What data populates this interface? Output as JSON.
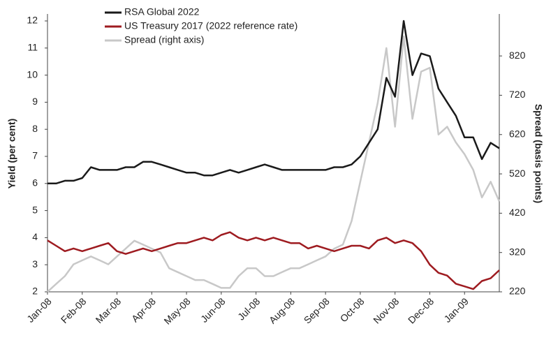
{
  "chart_data": {
    "type": "line",
    "y_label": "Yield (per cent)",
    "y2_label": "Spread (basis points)",
    "categories": [
      "Jan-08",
      null,
      null,
      null,
      "Feb-08",
      null,
      null,
      null,
      "Mar-08",
      null,
      null,
      null,
      "Apr-08",
      null,
      null,
      null,
      "May-08",
      null,
      null,
      null,
      "Jun-08",
      null,
      null,
      null,
      "Jul-08",
      null,
      null,
      null,
      "Aug-08",
      null,
      null,
      null,
      "Sep-08",
      null,
      null,
      null,
      "Oct-08",
      null,
      null,
      null,
      "Nov-08",
      null,
      null,
      null,
      "Dec-08",
      null,
      null,
      null,
      "Jan-09",
      null,
      null,
      null,
      null
    ],
    "series": [
      {
        "name": "RSA Global 2022",
        "color": "#1a1a1a",
        "values": [
          6.0,
          6.0,
          6.1,
          6.1,
          6.2,
          6.6,
          6.5,
          6.5,
          6.5,
          6.6,
          6.6,
          6.8,
          6.8,
          6.7,
          6.6,
          6.5,
          6.4,
          6.4,
          6.3,
          6.3,
          6.4,
          6.5,
          6.4,
          6.5,
          6.6,
          6.7,
          6.6,
          6.5,
          6.5,
          6.5,
          6.5,
          6.5,
          6.5,
          6.6,
          6.6,
          6.7,
          7.0,
          7.5,
          8.0,
          9.9,
          9.2,
          12.0,
          10.0,
          10.8,
          10.7,
          9.5,
          9.0,
          8.5,
          7.7,
          7.7,
          6.9,
          7.5,
          7.3
        ]
      },
      {
        "name": "US Treasury 2017 (2022 reference rate)",
        "color": "#9e1b20",
        "values": [
          3.9,
          3.7,
          3.5,
          3.6,
          3.5,
          3.6,
          3.7,
          3.8,
          3.5,
          3.4,
          3.5,
          3.6,
          3.5,
          3.6,
          3.7,
          3.8,
          3.8,
          3.9,
          4.0,
          3.9,
          4.1,
          4.2,
          4.0,
          3.9,
          4.0,
          3.9,
          4.0,
          3.9,
          3.8,
          3.8,
          3.6,
          3.7,
          3.6,
          3.5,
          3.6,
          3.7,
          3.7,
          3.6,
          3.9,
          4.0,
          3.8,
          3.9,
          3.8,
          3.5,
          3.0,
          2.7,
          2.6,
          2.3,
          2.2,
          2.1,
          2.4,
          2.5,
          2.8
        ]
      },
      {
        "name": "Spread (right axis)",
        "color": "#c8c8c8",
        "axis": "y2",
        "values": [
          220,
          240,
          260,
          290,
          300,
          310,
          300,
          290,
          310,
          330,
          350,
          340,
          330,
          320,
          280,
          270,
          260,
          250,
          250,
          240,
          230,
          230,
          260,
          280,
          280,
          260,
          260,
          270,
          280,
          280,
          290,
          300,
          310,
          330,
          340,
          400,
          500,
          600,
          700,
          840,
          640,
          870,
          660,
          780,
          790,
          620,
          640,
          600,
          570,
          530,
          460,
          500,
          450
        ]
      }
    ],
    "ylim": [
      2,
      12
    ],
    "yticks": [
      2,
      3,
      4,
      5,
      6,
      7,
      8,
      9,
      10,
      11,
      12
    ],
    "y2lim": [
      220,
      909
    ],
    "y2ticks": [
      220,
      320,
      420,
      520,
      620,
      720,
      820
    ],
    "legend": "upper left"
  }
}
